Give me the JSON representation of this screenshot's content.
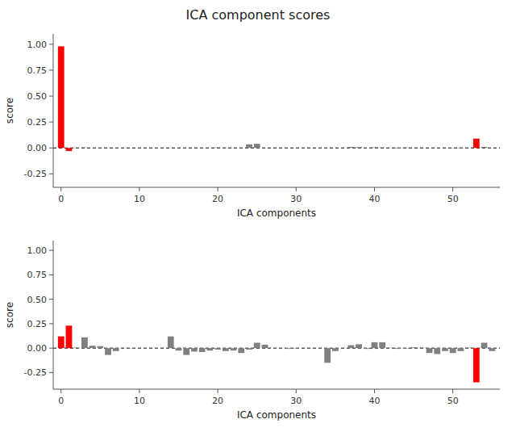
{
  "chart_data": [
    {
      "type": "bar",
      "title": "ICA component scores",
      "xlabel": "ICA components",
      "ylabel": "score",
      "categories": [
        "0",
        null,
        null,
        null,
        null,
        null,
        null,
        null,
        null,
        null,
        "10",
        null,
        null,
        null,
        null,
        null,
        null,
        null,
        null,
        null,
        "20",
        null,
        null,
        null,
        null,
        null,
        null,
        null,
        null,
        null,
        "30",
        null,
        null,
        null,
        null,
        null,
        null,
        null,
        null,
        null,
        "40",
        null,
        null,
        null,
        null,
        null,
        null,
        null,
        null,
        null,
        "50",
        null,
        null,
        null,
        null,
        null
      ],
      "values": [
        0.98,
        -0.03,
        0.003,
        0.004,
        -0.001,
        0.002,
        0.003,
        -0.002,
        0.002,
        -0.001,
        0.001,
        -0.001,
        0.002,
        0.001,
        -0.001,
        0.0005,
        -0.001,
        0.0005,
        0.002,
        0.001,
        0.005,
        0.003,
        0.002,
        -0.001,
        0.035,
        0.04,
        0.001,
        -0.001,
        0.0005,
        -0.0005,
        0.001,
        0.0005,
        -0.001,
        -0.0005,
        0.001,
        -0.0005,
        0.0005,
        0.01,
        0.008,
        -0.0005,
        0.006,
        0.004,
        -0.001,
        -0.005,
        0.004,
        -0.001,
        0.002,
        -0.001,
        0.001,
        0.002,
        -0.003,
        -0.004,
        0.002,
        0.09,
        0.01,
        -0.001
      ],
      "colors": [
        "#ff0000",
        "#ff0000",
        "#808080",
        "#808080",
        "#808080",
        "#808080",
        "#808080",
        "#808080",
        "#808080",
        "#808080",
        "#808080",
        "#808080",
        "#808080",
        "#808080",
        "#808080",
        "#808080",
        "#808080",
        "#808080",
        "#808080",
        "#808080",
        "#808080",
        "#808080",
        "#808080",
        "#808080",
        "#808080",
        "#808080",
        "#808080",
        "#808080",
        "#808080",
        "#808080",
        "#808080",
        "#808080",
        "#808080",
        "#808080",
        "#808080",
        "#808080",
        "#808080",
        "#808080",
        "#808080",
        "#808080",
        "#808080",
        "#808080",
        "#808080",
        "#808080",
        "#808080",
        "#808080",
        "#808080",
        "#808080",
        "#808080",
        "#808080",
        "#808080",
        "#808080",
        "#808080",
        "#ff0000",
        "#808080",
        "#808080"
      ],
      "ylim": [
        -0.38,
        1.1
      ],
      "yticks": [
        -0.25,
        {
          "value": 0.0,
          "label": "0.00"
        },
        0.25,
        {
          "value": 0.5,
          "label": "0.50"
        },
        0.75,
        {
          "value": 1.0,
          "label": "1.00"
        }
      ],
      "grid": false
    },
    {
      "type": "bar",
      "xlabel": "ICA components",
      "ylabel": "score",
      "categories": [
        "0",
        null,
        null,
        null,
        null,
        null,
        null,
        null,
        null,
        null,
        "10",
        null,
        null,
        null,
        null,
        null,
        null,
        null,
        null,
        null,
        "20",
        null,
        null,
        null,
        null,
        null,
        null,
        null,
        null,
        null,
        "30",
        null,
        null,
        null,
        null,
        null,
        null,
        null,
        null,
        null,
        "40",
        null,
        null,
        null,
        null,
        null,
        null,
        null,
        null,
        null,
        "50",
        null,
        null,
        null,
        null,
        null
      ],
      "values": [
        0.12,
        0.23,
        0.005,
        0.11,
        0.025,
        0.02,
        -0.07,
        -0.03,
        0.002,
        -0.003,
        0.001,
        -0.001,
        0.002,
        -0.0005,
        0.12,
        -0.025,
        -0.07,
        -0.035,
        -0.04,
        -0.025,
        -0.015,
        -0.03,
        -0.025,
        -0.05,
        -0.015,
        0.055,
        0.035,
        -0.001,
        0.002,
        -0.008,
        -0.004,
        0.002,
        -0.002,
        -0.0005,
        -0.15,
        -0.03,
        0.002,
        0.03,
        0.04,
        -0.008,
        0.06,
        0.06,
        0.004,
        -0.008,
        -0.004,
        0.008,
        0.004,
        -0.05,
        -0.06,
        -0.03,
        -0.05,
        -0.03,
        0.005,
        -0.35,
        0.055,
        -0.03
      ],
      "colors": [
        "#ff0000",
        "#ff0000",
        "#808080",
        "#808080",
        "#808080",
        "#808080",
        "#808080",
        "#808080",
        "#808080",
        "#808080",
        "#808080",
        "#808080",
        "#808080",
        "#808080",
        "#808080",
        "#808080",
        "#808080",
        "#808080",
        "#808080",
        "#808080",
        "#808080",
        "#808080",
        "#808080",
        "#808080",
        "#808080",
        "#808080",
        "#808080",
        "#808080",
        "#808080",
        "#808080",
        "#808080",
        "#808080",
        "#808080",
        "#808080",
        "#808080",
        "#808080",
        "#808080",
        "#808080",
        "#808080",
        "#808080",
        "#808080",
        "#808080",
        "#808080",
        "#808080",
        "#808080",
        "#808080",
        "#808080",
        "#808080",
        "#808080",
        "#808080",
        "#808080",
        "#808080",
        "#808080",
        "#ff0000",
        "#808080",
        "#808080"
      ],
      "ylim": [
        -0.42,
        1.1
      ],
      "yticks": [
        -0.25,
        {
          "value": 0.0,
          "label": "0.00"
        },
        0.25,
        {
          "value": 0.5,
          "label": "0.50"
        },
        0.75,
        {
          "value": 1.0,
          "label": "1.00"
        }
      ],
      "grid": false
    }
  ]
}
